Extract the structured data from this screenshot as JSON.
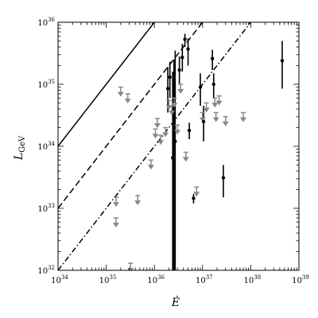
{
  "chart_data": {
    "type": "scatter",
    "xscale": "log",
    "yscale": "log",
    "xlim": [
      1e+34,
      1e+39
    ],
    "ylim": [
      1e+32,
      1e+36
    ],
    "grid": false,
    "xlabel": "Ė",
    "ylabel": "L_GeV",
    "x_ticks": [
      {
        "value": 1e+34,
        "mant": "10",
        "exp": "34"
      },
      {
        "value": 1e+35,
        "mant": "10",
        "exp": "35"
      },
      {
        "value": 1e+36,
        "mant": "10",
        "exp": "36"
      },
      {
        "value": 1e+37,
        "mant": "10",
        "exp": "37"
      },
      {
        "value": 1e+38,
        "mant": "10",
        "exp": "38"
      },
      {
        "value": 1e+39,
        "mant": "10",
        "exp": "39"
      }
    ],
    "y_ticks": [
      {
        "value": 1e+32,
        "mant": "10",
        "exp": "32"
      },
      {
        "value": 1e+33,
        "mant": "10",
        "exp": "33"
      },
      {
        "value": 1e+34,
        "mant": "10",
        "exp": "34"
      },
      {
        "value": 1e+35,
        "mant": "10",
        "exp": "35"
      },
      {
        "value": 1e+36,
        "mant": "10",
        "exp": "36"
      }
    ],
    "lines": [
      {
        "style": "solid",
        "efficiency": 1.0
      },
      {
        "style": "dashed",
        "efficiency": 0.1
      },
      {
        "style": "dashdot",
        "efficiency": 0.01
      }
    ],
    "detections": [
      {
        "x": 1.9e+36,
        "y": 8.5e+34,
        "ylo": 3.5e+34,
        "yhi": 1.9e+35
      },
      {
        "x": 2.1e+36,
        "y": 1.3e+35,
        "ylo": 6e+34,
        "yhi": 2.3e+35
      },
      {
        "x": 2.4e+36,
        "y": 6.5e+33,
        "ylo": 1e+32,
        "yhi": 1.6e+35
      },
      {
        "x": 2.55e+36,
        "y": 9e+34,
        "ylo": 1e+32,
        "yhi": 2.5e+35
      },
      {
        "x": 2.7e+36,
        "y": 1.2e+34,
        "ylo": 1e+32,
        "yhi": 3.5e+35
      },
      {
        "x": 3.3e+36,
        "y": 1.7e+35,
        "ylo": 1e+35,
        "yhi": 2.8e+35
      },
      {
        "x": 3.8e+36,
        "y": 2.7e+35,
        "ylo": 1.6e+35,
        "yhi": 4.5e+35
      },
      {
        "x": 4.3e+36,
        "y": 5.3e+35,
        "ylo": 4e+35,
        "yhi": 6.5e+35
      },
      {
        "x": 5e+36,
        "y": 3.7e+35,
        "ylo": 2e+35,
        "yhi": 5.5e+35
      },
      {
        "x": 5.3e+36,
        "y": 1.8e+34,
        "ylo": 1.3e+34,
        "yhi": 2.4e+34
      },
      {
        "x": 6.5e+36,
        "y": 1.45e+33,
        "ylo": 1.2e+33,
        "yhi": 1.7e+33
      },
      {
        "x": 9e+36,
        "y": 9e+34,
        "ylo": 4.5e+34,
        "yhi": 1.5e+35
      },
      {
        "x": 1.05e+37,
        "y": 2.5e+34,
        "ylo": 1.2e+34,
        "yhi": 4.5e+34
      },
      {
        "x": 1.6e+37,
        "y": 2.6e+35,
        "ylo": 1.7e+35,
        "yhi": 3.6e+35
      },
      {
        "x": 1.7e+37,
        "y": 1e+35,
        "ylo": 6e+34,
        "yhi": 1.5e+35
      },
      {
        "x": 2.7e+37,
        "y": 3.1e+33,
        "ylo": 1.5e+33,
        "yhi": 5e+33
      },
      {
        "x": 4.5e+38,
        "y": 2.4e+35,
        "ylo": 8.5e+34,
        "yhi": 5e+35
      }
    ],
    "upper_limits": [
      {
        "x": 1.6e+35,
        "y": 1.5e+33
      },
      {
        "x": 1.6e+35,
        "y": 7e+32
      },
      {
        "x": 2e+35,
        "y": 9e+34
      },
      {
        "x": 2.8e+35,
        "y": 7e+34
      },
      {
        "x": 3.2e+35,
        "y": 1.3e+32
      },
      {
        "x": 4.5e+35,
        "y": 1.6e+33
      },
      {
        "x": 8.5e+35,
        "y": 6e+33
      },
      {
        "x": 1.05e+36,
        "y": 1.9e+34
      },
      {
        "x": 1.15e+36,
        "y": 2.8e+34
      },
      {
        "x": 1.35e+36,
        "y": 1.5e+34
      },
      {
        "x": 1.7e+36,
        "y": 2e+34
      },
      {
        "x": 2e+36,
        "y": 5.5e+34
      },
      {
        "x": 2.3e+36,
        "y": 4.5e+34
      },
      {
        "x": 2.6e+36,
        "y": 6e+34
      },
      {
        "x": 3e+36,
        "y": 2.2e+34
      },
      {
        "x": 3.5e+36,
        "y": 1e+35
      },
      {
        "x": 4.5e+36,
        "y": 8e+33
      },
      {
        "x": 7.5e+36,
        "y": 2.2e+33
      },
      {
        "x": 1e+37,
        "y": 3.5e+34
      },
      {
        "x": 1.2e+37,
        "y": 5e+34
      },
      {
        "x": 1.8e+37,
        "y": 6e+34
      },
      {
        "x": 1.9e+37,
        "y": 3.5e+34
      },
      {
        "x": 2.2e+37,
        "y": 6.5e+34
      },
      {
        "x": 3e+37,
        "y": 3e+34
      },
      {
        "x": 7e+37,
        "y": 3.5e+34
      }
    ],
    "colors": {
      "detection": "#000000",
      "upper_limit": "#888888",
      "lines": "#000000",
      "axes": "#000000"
    }
  }
}
